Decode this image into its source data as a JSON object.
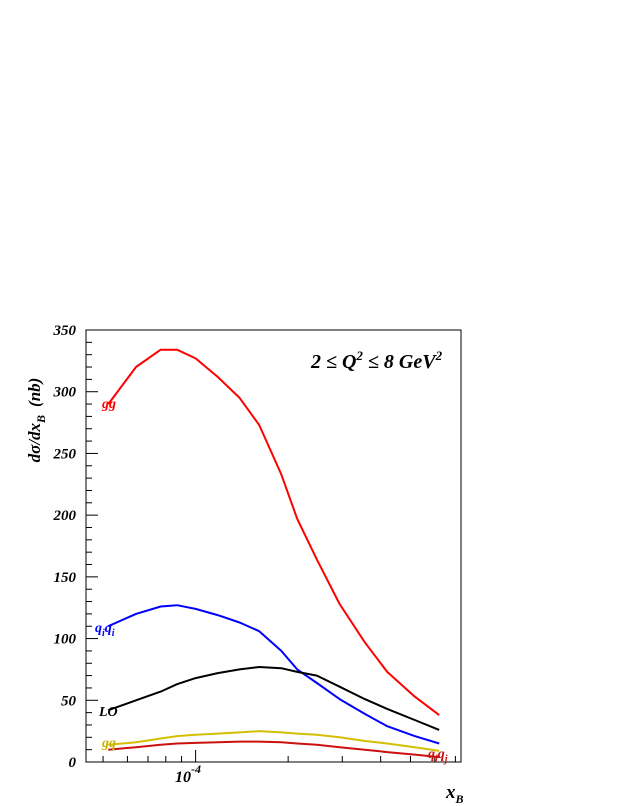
{
  "chart_data": {
    "type": "line",
    "title": "",
    "annotation": {
      "main": "2 ≤ Q",
      "sup1": "2",
      "mid": " ≤ 8 GeV",
      "sup2": "2"
    },
    "ylabel": {
      "main": "dσ/dx",
      "sub": "B",
      "unit": "(nb)"
    },
    "xlabel": {
      "main": "x",
      "sub": "B"
    },
    "xscale": "log",
    "xlim": [
      4.4e-05,
      0.00073
    ],
    "ylim": [
      0,
      350
    ],
    "yticks": [
      0,
      50,
      100,
      150,
      200,
      250,
      300,
      350
    ],
    "xtick_label": {
      "value": 0.0001,
      "base": "10",
      "exp": "-4"
    },
    "x": [
      5.2e-05,
      6.4e-05,
      7.7e-05,
      8.7e-05,
      0.0001,
      0.000118,
      0.000139,
      0.000161,
      0.00019,
      0.000214,
      0.000248,
      0.000294,
      0.000355,
      0.00042,
      0.000516,
      0.00062
    ],
    "series": [
      {
        "name": "gg",
        "color": "#ff0000",
        "values": [
          290,
          320,
          334,
          334,
          327,
          312,
          295,
          273,
          233,
          197,
          164,
          128,
          97,
          73,
          53,
          38
        ]
      },
      {
        "name_parts": [
          "q",
          "i",
          "q",
          "i"
        ],
        "color": "#0000ff",
        "values": [
          110,
          120,
          126,
          127,
          124,
          119,
          113,
          106,
          90,
          75,
          64,
          51,
          39,
          29,
          21,
          15
        ]
      },
      {
        "name": "LO",
        "color": "#000000",
        "values": [
          42,
          50,
          57,
          63,
          68,
          72,
          75,
          77,
          76,
          73,
          70,
          61,
          51,
          43,
          34,
          26
        ]
      },
      {
        "name": "gq",
        "color": "#d4c000",
        "values": [
          14,
          16,
          19,
          21,
          22,
          23,
          24,
          25,
          24,
          23,
          22,
          20,
          17,
          15,
          12,
          9
        ]
      },
      {
        "name_parts": [
          "q",
          "i",
          "q",
          "j"
        ],
        "color": "#cc1010",
        "values": [
          10,
          12,
          14,
          15,
          15.5,
          16,
          16.5,
          16.5,
          16,
          15,
          14,
          12,
          10,
          8,
          6,
          4
        ]
      }
    ]
  }
}
